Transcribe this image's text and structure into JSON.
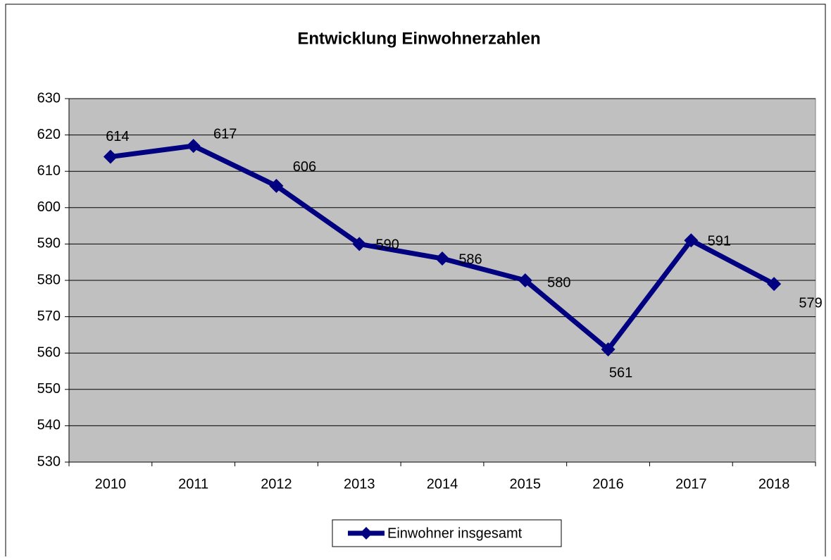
{
  "chart_data": {
    "type": "line",
    "title": "Entwicklung Einwohnerzahlen",
    "categories": [
      "2010",
      "2011",
      "2012",
      "2013",
      "2014",
      "2015",
      "2016",
      "2017",
      "2018"
    ],
    "series": [
      {
        "name": "Einwohner insgesamt",
        "color": "#000080",
        "values": [
          614,
          617,
          606,
          590,
          586,
          580,
          561,
          591,
          579
        ]
      }
    ],
    "ylim": [
      530,
      630
    ],
    "yticks": [
      530,
      540,
      550,
      560,
      570,
      580,
      590,
      600,
      610,
      620,
      630
    ],
    "grid": true,
    "plot_background": "#c0c0c0",
    "legend": "bottom"
  }
}
